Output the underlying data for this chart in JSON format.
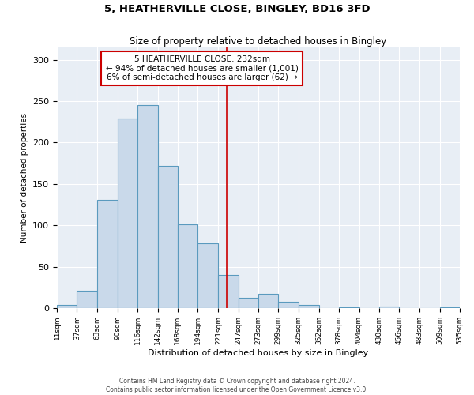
{
  "title": "5, HEATHERVILLE CLOSE, BINGLEY, BD16 3FD",
  "subtitle": "Size of property relative to detached houses in Bingley",
  "xlabel": "Distribution of detached houses by size in Bingley",
  "ylabel": "Number of detached properties",
  "bin_edges": [
    11,
    37,
    63,
    90,
    116,
    142,
    168,
    194,
    221,
    247,
    273,
    299,
    325,
    352,
    378,
    404,
    430,
    456,
    483,
    509,
    535
  ],
  "bar_heights": [
    4,
    21,
    131,
    229,
    245,
    172,
    101,
    78,
    40,
    12,
    17,
    8,
    4,
    0,
    1,
    0,
    2,
    0,
    0,
    1
  ],
  "bar_color": "#c9d9ea",
  "bar_edge_color": "#5a9abe",
  "subject_value": 232,
  "subject_label": "5 HEATHERVILLE CLOSE: 232sqm",
  "annotation_line1": "← 94% of detached houses are smaller (1,001)",
  "annotation_line2": "6% of semi-detached houses are larger (62) →",
  "annotation_box_color": "#ffffff",
  "annotation_box_edge": "#cc0000",
  "vline_color": "#cc0000",
  "ylim": [
    0,
    315
  ],
  "yticks": [
    0,
    50,
    100,
    150,
    200,
    250,
    300
  ],
  "background_color": "#e8eef5",
  "footer_line1": "Contains HM Land Registry data © Crown copyright and database right 2024.",
  "footer_line2": "Contains public sector information licensed under the Open Government Licence v3.0."
}
